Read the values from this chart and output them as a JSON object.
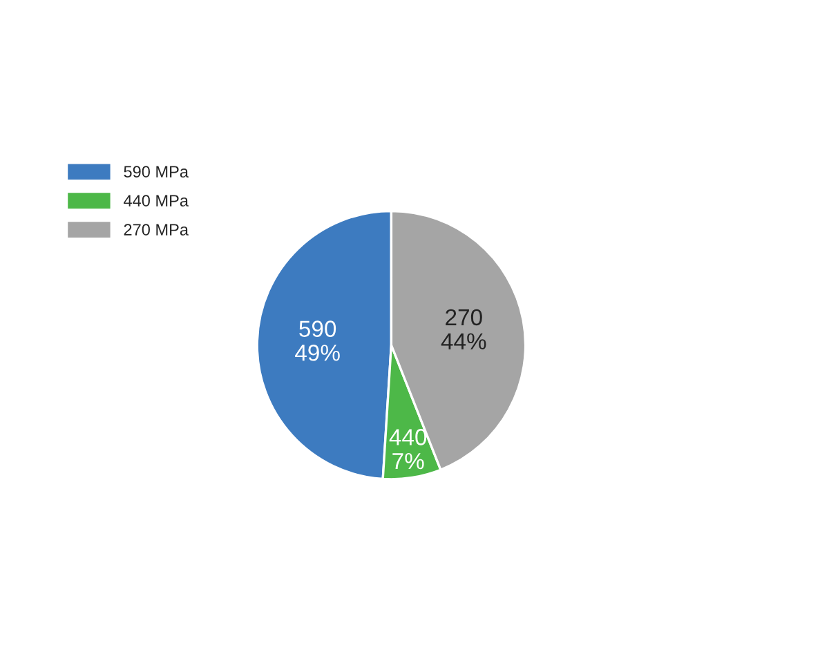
{
  "chart_data": {
    "type": "pie",
    "categories": [
      "590 MPa",
      "440 MPa",
      "270 MPa"
    ],
    "values": [
      49,
      7,
      44
    ],
    "colors": [
      "#3d7bc0",
      "#4db848",
      "#a5a5a5"
    ],
    "value_labels": [
      "590\n49%",
      "440\n7%",
      "270\n44%"
    ],
    "legend": "top left"
  }
}
